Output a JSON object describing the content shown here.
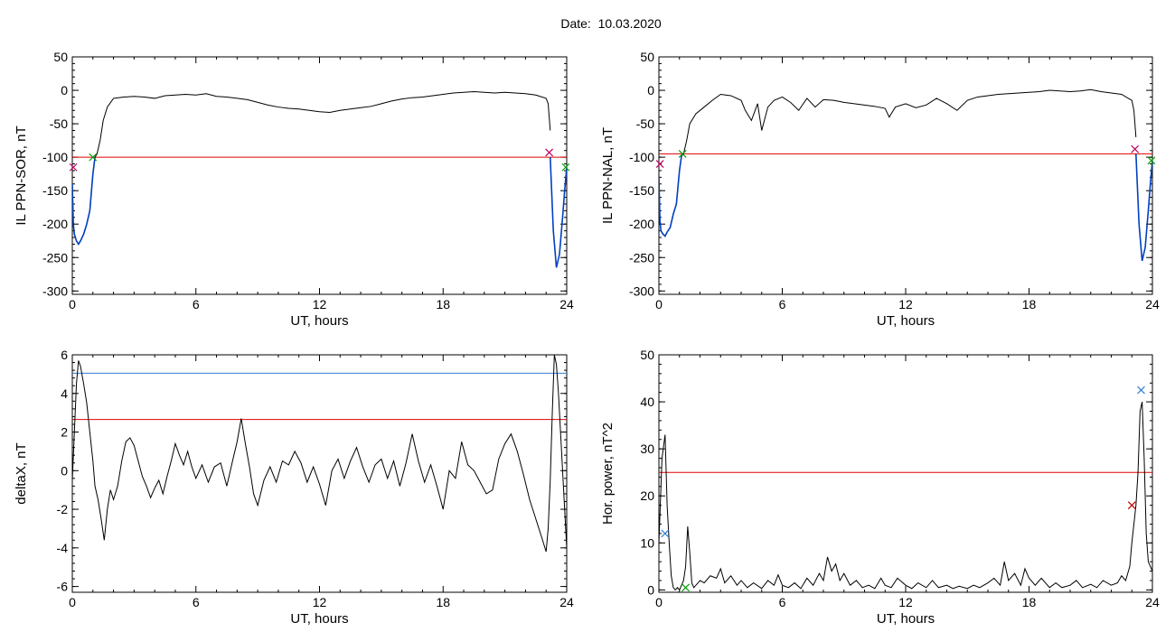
{
  "title": "Date:  10.03.2020",
  "chart_data": [
    {
      "type": "line",
      "xlabel": "UT, hours",
      "ylabel": "IL PPN-SOR, nT",
      "xlim": [
        0,
        24
      ],
      "ylim": [
        -305,
        50
      ],
      "xticks": [
        0,
        6,
        12,
        18,
        24
      ],
      "yticks": [
        50,
        0,
        -50,
        -100,
        -150,
        -200,
        -250,
        -300
      ],
      "threshold": {
        "value": -100,
        "color": "#e00000"
      },
      "series": [
        {
          "color": "#000000",
          "x": [
            0,
            0.05,
            0.1,
            0.2,
            0.3,
            0.4,
            0.55,
            0.7,
            0.85,
            1.0,
            1.1,
            1.2,
            1.35,
            1.5,
            1.7,
            2.0,
            2.5,
            3,
            3.5,
            4,
            4.5,
            5,
            5.5,
            6,
            6.5,
            7,
            7.5,
            8,
            8.5,
            9,
            9.5,
            10,
            10.5,
            11,
            11.5,
            12,
            12.5,
            13,
            13.5,
            14,
            14.5,
            15,
            15.5,
            16,
            16.5,
            17,
            17.5,
            18,
            18.5,
            19,
            19.5,
            20,
            20.5,
            21,
            21.5,
            22,
            22.5,
            23,
            23.1,
            23.2
          ],
          "y": [
            -140,
            -200,
            -215,
            -225,
            -230,
            -225,
            -215,
            -200,
            -180,
            -125,
            -100,
            -95,
            -75,
            -45,
            -25,
            -12,
            -10,
            -9,
            -10,
            -12,
            -8,
            -7,
            -6,
            -7,
            -5,
            -9,
            -10,
            -12,
            -14,
            -18,
            -22,
            -25,
            -27,
            -28,
            -30,
            -32,
            -33,
            -30,
            -28,
            -26,
            -24,
            -20,
            -16,
            -13,
            -11,
            -10,
            -8,
            -6,
            -4,
            -3,
            -2,
            -3,
            -4,
            -3,
            -4,
            -5,
            -7,
            -12,
            -20,
            -60
          ]
        },
        {
          "color": "#0040c0",
          "x": [
            0,
            0.05,
            0.1,
            0.2,
            0.3,
            0.4,
            0.55,
            0.7,
            0.85,
            1.0,
            1.1
          ],
          "y": [
            -140,
            -200,
            -215,
            -225,
            -230,
            -225,
            -215,
            -200,
            -180,
            -125,
            -100
          ]
        },
        {
          "color": "#0040c0",
          "x": [
            23.2,
            23.35,
            23.5,
            23.65,
            23.8,
            23.9,
            24.0
          ],
          "y": [
            -100,
            -210,
            -265,
            -245,
            -190,
            -150,
            -115
          ]
        }
      ],
      "markers": [
        {
          "x": 0.05,
          "y": -115,
          "color": "#c00060"
        },
        {
          "x": 1.0,
          "y": -100,
          "color": "#00a000"
        },
        {
          "x": 23.15,
          "y": -93,
          "color": "#c00060"
        },
        {
          "x": 23.95,
          "y": -115,
          "color": "#00a000"
        }
      ]
    },
    {
      "type": "line",
      "xlabel": "UT, hours",
      "ylabel": "IL PPN-NAL, nT",
      "xlim": [
        0,
        24
      ],
      "ylim": [
        -305,
        50
      ],
      "xticks": [
        0,
        6,
        12,
        18,
        24
      ],
      "yticks": [
        50,
        0,
        -50,
        -100,
        -150,
        -200,
        -250,
        -300
      ],
      "threshold": {
        "value": -95,
        "color": "#e00000"
      },
      "series": [
        {
          "color": "#000000",
          "x": [
            0,
            0.05,
            0.1,
            0.2,
            0.3,
            0.4,
            0.55,
            0.7,
            0.85,
            1.0,
            1.1,
            1.2,
            1.35,
            1.5,
            1.8,
            2.2,
            2.6,
            3,
            3.5,
            4,
            4.2,
            4.5,
            4.8,
            5,
            5.3,
            5.6,
            6,
            6.4,
            6.8,
            7.2,
            7.6,
            8,
            8.5,
            9,
            9.5,
            10,
            10.5,
            11,
            11.2,
            11.5,
            12,
            12.5,
            13,
            13.5,
            14,
            14.5,
            15,
            15.5,
            16,
            16.5,
            17,
            17.5,
            18,
            18.5,
            19,
            19.5,
            20,
            20.5,
            21,
            21.5,
            22,
            22.5,
            23,
            23.1,
            23.2
          ],
          "y": [
            -130,
            -195,
            -210,
            -215,
            -218,
            -212,
            -205,
            -185,
            -170,
            -120,
            -98,
            -95,
            -75,
            -50,
            -35,
            -25,
            -15,
            -6,
            -8,
            -15,
            -30,
            -45,
            -20,
            -60,
            -25,
            -15,
            -10,
            -18,
            -30,
            -12,
            -25,
            -14,
            -15,
            -18,
            -20,
            -22,
            -24,
            -27,
            -40,
            -25,
            -20,
            -26,
            -22,
            -12,
            -20,
            -30,
            -15,
            -10,
            -8,
            -6,
            -5,
            -4,
            -3,
            -2,
            0,
            -1,
            -2,
            -1,
            1,
            -2,
            -4,
            -6,
            -15,
            -30,
            -70
          ]
        },
        {
          "color": "#0040c0",
          "x": [
            0,
            0.05,
            0.1,
            0.2,
            0.3,
            0.4,
            0.55,
            0.7,
            0.85,
            1.0,
            1.1
          ],
          "y": [
            -130,
            -195,
            -210,
            -215,
            -218,
            -212,
            -205,
            -185,
            -170,
            -120,
            -98
          ]
        },
        {
          "color": "#0040c0",
          "x": [
            23.2,
            23.35,
            23.5,
            23.65,
            23.8,
            23.9,
            24.0
          ],
          "y": [
            -95,
            -200,
            -255,
            -235,
            -180,
            -140,
            -105
          ]
        }
      ],
      "markers": [
        {
          "x": 0.05,
          "y": -110,
          "color": "#c00060"
        },
        {
          "x": 1.15,
          "y": -95,
          "color": "#00a000"
        },
        {
          "x": 23.15,
          "y": -88,
          "color": "#c00060"
        },
        {
          "x": 23.95,
          "y": -105,
          "color": "#00a000"
        }
      ]
    },
    {
      "type": "line",
      "xlabel": "UT, hours",
      "ylabel": "deltaX, nT",
      "xlim": [
        0,
        24
      ],
      "ylim": [
        -6.3,
        6
      ],
      "xticks": [
        0,
        6,
        12,
        18,
        24
      ],
      "yticks": [
        6,
        4,
        2,
        0,
        -2,
        -4,
        -6
      ],
      "thresholds": [
        {
          "value": 5.05,
          "color": "#3080d0"
        },
        {
          "value": 2.65,
          "color": "#e00000"
        }
      ],
      "series": [
        {
          "color": "#000000",
          "x": [
            0,
            0.1,
            0.2,
            0.3,
            0.4,
            0.55,
            0.7,
            0.85,
            1.0,
            1.1,
            1.25,
            1.4,
            1.55,
            1.7,
            1.85,
            2.0,
            2.2,
            2.4,
            2.6,
            2.8,
            3.0,
            3.2,
            3.4,
            3.6,
            3.8,
            4.0,
            4.2,
            4.4,
            4.6,
            4.8,
            5.0,
            5.2,
            5.4,
            5.6,
            5.8,
            6.0,
            6.3,
            6.6,
            6.9,
            7.2,
            7.5,
            7.8,
            8.0,
            8.2,
            8.4,
            8.6,
            8.8,
            9.0,
            9.3,
            9.6,
            9.9,
            10.2,
            10.5,
            10.8,
            11.1,
            11.4,
            11.7,
            12.0,
            12.3,
            12.6,
            12.9,
            13.2,
            13.5,
            13.8,
            14.1,
            14.4,
            14.7,
            15.0,
            15.3,
            15.6,
            15.9,
            16.2,
            16.5,
            16.8,
            17.1,
            17.4,
            17.7,
            18.0,
            18.3,
            18.6,
            18.9,
            19.2,
            19.5,
            19.8,
            20.1,
            20.4,
            20.7,
            21.0,
            21.3,
            21.6,
            21.9,
            22.2,
            22.5,
            22.8,
            23.0,
            23.1,
            23.2,
            23.3,
            23.4,
            23.5,
            23.6,
            23.7,
            23.8,
            23.9,
            24.0
          ],
          "y": [
            -0.5,
            2.0,
            4.5,
            5.7,
            5.4,
            4.5,
            3.5,
            2.0,
            0.5,
            -0.8,
            -1.5,
            -2.5,
            -3.6,
            -2.0,
            -1.0,
            -1.5,
            -0.8,
            0.5,
            1.5,
            1.7,
            1.3,
            0.5,
            -0.3,
            -0.8,
            -1.4,
            -0.9,
            -0.5,
            -1.2,
            -0.3,
            0.5,
            1.4,
            0.8,
            0.3,
            1.0,
            0.2,
            -0.4,
            0.3,
            -0.6,
            0.2,
            0.4,
            -0.8,
            0.6,
            1.5,
            2.7,
            1.4,
            0.2,
            -1.2,
            -1.8,
            -0.5,
            0.2,
            -0.6,
            0.5,
            0.3,
            1.0,
            0.4,
            -0.6,
            0.2,
            -0.7,
            -1.8,
            0.0,
            0.6,
            -0.4,
            0.5,
            1.2,
            0.2,
            -0.6,
            0.3,
            0.6,
            -0.4,
            0.5,
            -0.8,
            0.4,
            1.9,
            0.5,
            -0.6,
            0.3,
            -0.8,
            -2.0,
            0.0,
            -0.4,
            1.5,
            0.3,
            0.0,
            -0.6,
            -1.2,
            -1.0,
            0.6,
            1.4,
            1.9,
            1.0,
            -0.2,
            -1.5,
            -2.5,
            -3.5,
            -4.2,
            -3.0,
            -0.5,
            3.0,
            6.0,
            5.5,
            4.0,
            2.0,
            0.0,
            -2.0,
            -4.0
          ]
        }
      ]
    },
    {
      "type": "line",
      "xlabel": "UT, hours",
      "ylabel": "Hor. power, nT^2",
      "xlim": [
        0,
        24
      ],
      "ylim": [
        -0.5,
        50
      ],
      "xticks": [
        0,
        6,
        12,
        18,
        24
      ],
      "yticks": [
        50,
        40,
        30,
        20,
        10,
        0
      ],
      "threshold": {
        "value": 25,
        "color": "#e00000"
      },
      "series": [
        {
          "color": "#000000",
          "x": [
            0,
            0.15,
            0.3,
            0.4,
            0.5,
            0.6,
            0.7,
            0.8,
            0.9,
            1.0,
            1.1,
            1.2,
            1.3,
            1.4,
            1.5,
            1.6,
            1.7,
            1.8,
            2.0,
            2.2,
            2.5,
            2.8,
            3.0,
            3.2,
            3.5,
            3.8,
            4.0,
            4.3,
            4.6,
            5.0,
            5.3,
            5.6,
            5.8,
            6.0,
            6.3,
            6.6,
            6.9,
            7.2,
            7.5,
            7.8,
            8.0,
            8.2,
            8.4,
            8.6,
            8.8,
            9.0,
            9.3,
            9.6,
            9.9,
            10.2,
            10.5,
            10.8,
            11.0,
            11.3,
            11.6,
            12.0,
            12.3,
            12.6,
            13.0,
            13.3,
            13.6,
            14.0,
            14.3,
            14.6,
            15.0,
            15.3,
            15.6,
            16.0,
            16.3,
            16.6,
            16.8,
            17.0,
            17.3,
            17.6,
            17.8,
            18.0,
            18.3,
            18.6,
            19.0,
            19.3,
            19.6,
            20.0,
            20.3,
            20.6,
            21.0,
            21.3,
            21.6,
            22.0,
            22.3,
            22.5,
            22.7,
            22.9,
            23.0,
            23.1,
            23.2,
            23.3,
            23.4,
            23.5,
            23.6,
            23.7,
            23.8,
            23.9,
            24.0
          ],
          "y": [
            10,
            28,
            33,
            18,
            10,
            3,
            0.5,
            0,
            0.5,
            0,
            1.0,
            2.0,
            5.0,
            13.5,
            8.0,
            1.5,
            0.5,
            1.0,
            2.0,
            1.5,
            3.0,
            2.5,
            4.5,
            1.5,
            3.0,
            1.0,
            2.0,
            0.5,
            1.5,
            0.3,
            2.0,
            1.0,
            3.2,
            1.0,
            0.5,
            1.5,
            0.3,
            2.5,
            1.0,
            3.5,
            2.0,
            7.0,
            4.0,
            5.5,
            2.0,
            3.5,
            1.0,
            2.0,
            0.5,
            1.0,
            0.3,
            2.5,
            1.0,
            0.5,
            2.5,
            1.0,
            0.3,
            1.5,
            0.5,
            2.0,
            0.5,
            1.0,
            0.3,
            0.8,
            0.3,
            1.0,
            0.5,
            1.5,
            2.5,
            1.0,
            6.0,
            2.0,
            3.5,
            1.0,
            4.5,
            2.5,
            1.0,
            2.5,
            0.5,
            1.5,
            0.5,
            1.0,
            2.0,
            0.5,
            1.2,
            0.5,
            2.0,
            1.0,
            1.5,
            3.0,
            2.0,
            5.0,
            10.0,
            14.0,
            18.0,
            25.0,
            38.0,
            40.0,
            28.0,
            12.0,
            6.0,
            5.0,
            4.0
          ]
        }
      ],
      "markers": [
        {
          "x": 0.3,
          "y": 12,
          "color": "#3080d0"
        },
        {
          "x": 1.3,
          "y": 0.5,
          "color": "#00a000"
        },
        {
          "x": 23.0,
          "y": 18,
          "color": "#c00000"
        },
        {
          "x": 23.45,
          "y": 42.5,
          "color": "#3080d0"
        }
      ]
    }
  ]
}
